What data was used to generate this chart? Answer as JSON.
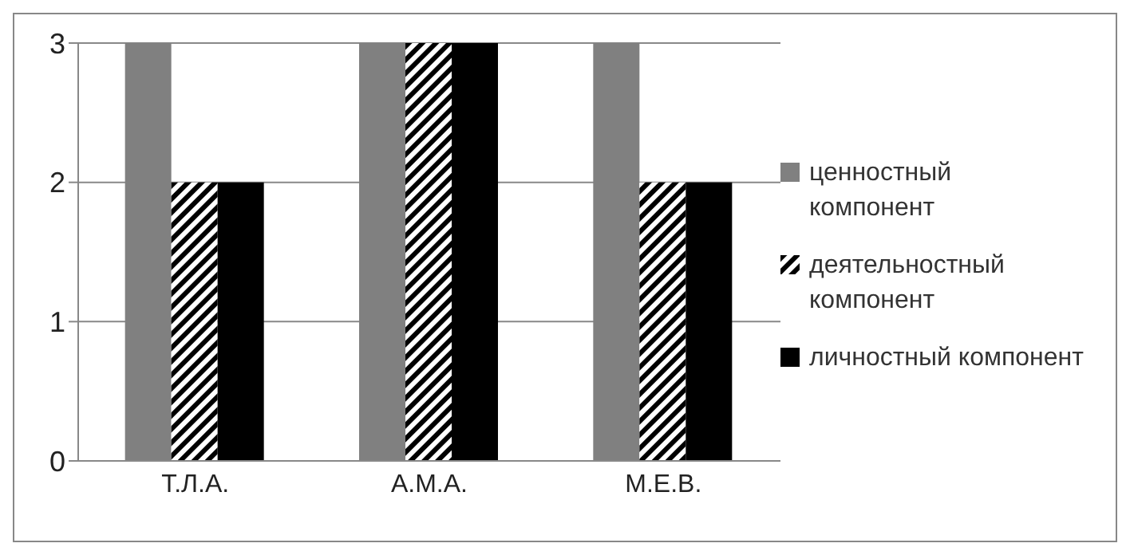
{
  "chart_data": {
    "type": "bar",
    "categories": [
      "Т.Л.А.",
      "А.М.А.",
      "М.Е.В."
    ],
    "series": [
      {
        "name": "ценностный компонент",
        "color": "#808080",
        "values": [
          3,
          3,
          3
        ]
      },
      {
        "name": "деятельностный компонент",
        "color": "#000000",
        "values": [
          2,
          3,
          2
        ]
      },
      {
        "name": "личностный компонент",
        "color": "#000000",
        "values": [
          2,
          3,
          2
        ]
      }
    ],
    "ylim": [
      0,
      3
    ],
    "yticks": [
      0,
      1,
      2,
      3
    ],
    "grid": "y",
    "legend": "right"
  }
}
